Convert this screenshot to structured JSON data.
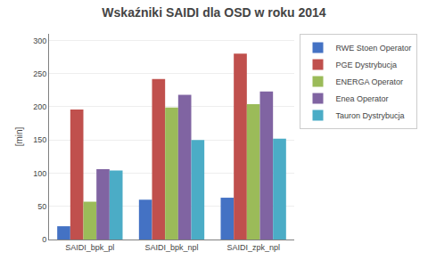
{
  "chart_data": {
    "type": "bar",
    "title": "Wskaźniki SAIDI dla OSD w roku 2014",
    "categories": [
      "SAIDI_bpk_pl",
      "SAIDI_bpk_npl",
      "SAIDI_zpk_npl"
    ],
    "series": [
      {
        "name": "RWE Stoen Operator",
        "color": "#4472C4",
        "values": [
          20,
          60,
          63
        ]
      },
      {
        "name": "PGE Dystrybucja",
        "color": "#C0504D",
        "values": [
          196,
          242,
          280
        ]
      },
      {
        "name": "ENERGA Operator",
        "color": "#9BBB59",
        "values": [
          57,
          199,
          204
        ]
      },
      {
        "name": "Enea Operator",
        "color": "#8064A2",
        "values": [
          106,
          218,
          223
        ]
      },
      {
        "name": "Tauron Dystrybucja",
        "color": "#4BACC6",
        "values": [
          104,
          150,
          152
        ]
      }
    ],
    "ylabel": "[min]",
    "ylim": [
      0,
      310
    ],
    "yticks": [
      0,
      50,
      100,
      150,
      200,
      250,
      300
    ],
    "grid": true,
    "legend": "right"
  }
}
